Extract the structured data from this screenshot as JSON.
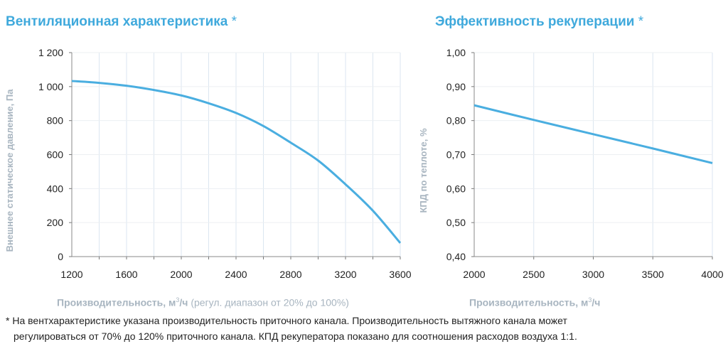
{
  "chart_data": [
    {
      "type": "line",
      "title": "Вентиляционная характеристика",
      "title_mark": "*",
      "xlabel_bold": "Производительность, м",
      "xlabel_sup": "3",
      "xlabel_unit": "/ч",
      "xlabel_extra": "(регул. диапазон от 20% до 100%)",
      "ylabel": "Внешнее статическое давление, Па",
      "xlim": [
        1200,
        3600
      ],
      "ylim": [
        0,
        1200
      ],
      "x_ticks": [
        "1200",
        "1600",
        "2000",
        "2400",
        "2800",
        "3200",
        "3600"
      ],
      "y_ticks": [
        "0",
        "200",
        "400",
        "600",
        "800",
        "1 000",
        "1 200"
      ],
      "grid": true,
      "line_color": "#4aaee0",
      "x": [
        1200,
        1400,
        1600,
        1800,
        2000,
        2200,
        2400,
        2600,
        2800,
        3000,
        3200,
        3400,
        3600
      ],
      "y": [
        1033,
        1022,
        1005,
        980,
        948,
        902,
        845,
        768,
        670,
        565,
        425,
        270,
        80
      ]
    },
    {
      "type": "line",
      "title": "Эффективность рекуперации",
      "title_mark": "*",
      "xlabel_bold": "Производительность, м",
      "xlabel_sup": "3",
      "xlabel_unit": "/ч",
      "ylabel": "КПД по теплоте, %",
      "xlim": [
        2000,
        4000
      ],
      "ylim": [
        0.4,
        1.0
      ],
      "x_ticks": [
        "2000",
        "2500",
        "3000",
        "3500",
        "4000"
      ],
      "y_ticks": [
        "0,40",
        "0,50",
        "0,60",
        "0,70",
        "0,80",
        "0,90",
        "1,00"
      ],
      "grid": true,
      "line_color": "#4aaee0",
      "x": [
        2000,
        2500,
        3000,
        3500,
        4000
      ],
      "y": [
        0.845,
        0.802,
        0.76,
        0.718,
        0.675
      ]
    }
  ],
  "footnote": {
    "line1": "* На вентхарактеристике указана производительность приточного канала. Производительность вытяжного канала может",
    "line2": "регулироваться от 70% до 120% приточного канала. КПД рекуператора показано для соотношения расходов воздуха 1:1."
  }
}
